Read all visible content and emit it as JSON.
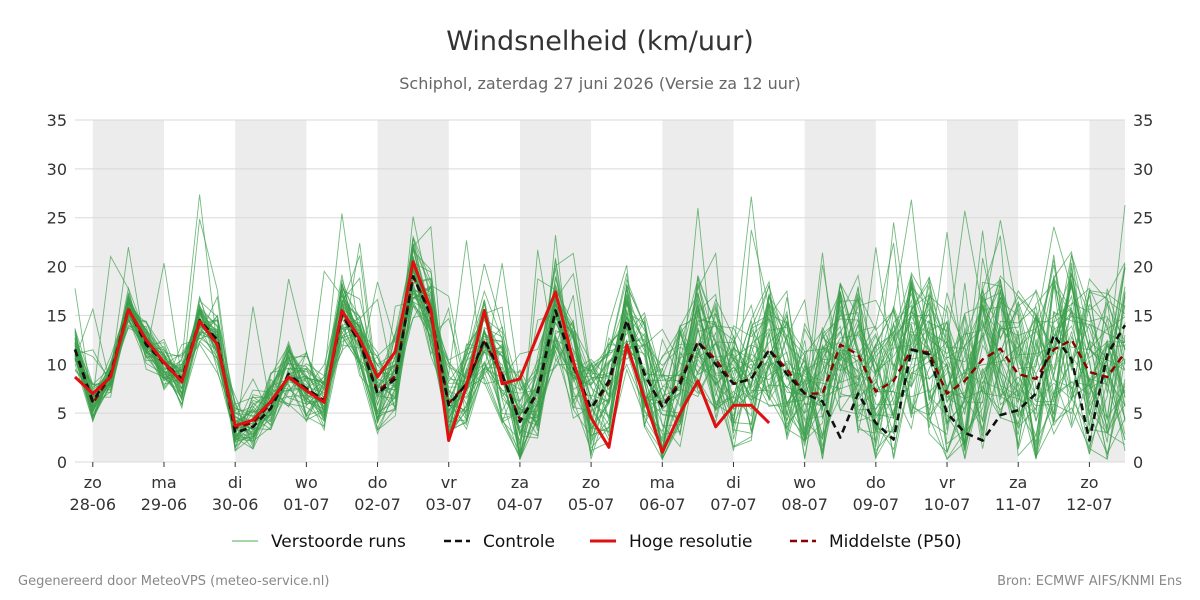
{
  "title": "Windsnelheid (km/uur)",
  "subtitle": "Schiphol, zaterdag 27 juni 2026 (Versie za 12 uur)",
  "footer_left": "Gegenereerd door MeteoVPS (meteo-service.nl)",
  "footer_right": "Bron: ECMWF AIFS/KNMI Ens",
  "legend": [
    {
      "label": "Verstoorde runs",
      "color": "#4caf50",
      "style": "thin"
    },
    {
      "label": "Controle",
      "color": "#111111",
      "style": "dashed"
    },
    {
      "label": "Hoge resolutie",
      "color": "#e01010",
      "style": "solid"
    },
    {
      "label": "Middelste (P50)",
      "color": "#8b0000",
      "style": "dashed"
    }
  ],
  "chart_data": {
    "type": "line",
    "title": "Windsnelheid (km/uur)",
    "subtitle": "Schiphol, zaterdag 27 juni 2026 (Versie za 12 uur)",
    "x_unit": "days since 28-06 00:00",
    "x_range": [
      -0.25,
      14.5
    ],
    "ylim": [
      0,
      35
    ],
    "yticks": [
      0,
      5,
      10,
      15,
      20,
      25,
      30,
      35
    ],
    "grid": true,
    "legend_position": "bottom",
    "x_ticks": [
      {
        "day": "zo",
        "date": "28-06"
      },
      {
        "day": "ma",
        "date": "29-06"
      },
      {
        "day": "di",
        "date": "30-06"
      },
      {
        "day": "wo",
        "date": "01-07"
      },
      {
        "day": "do",
        "date": "02-07"
      },
      {
        "day": "vr",
        "date": "03-07"
      },
      {
        "day": "za",
        "date": "04-07"
      },
      {
        "day": "zo",
        "date": "05-07"
      },
      {
        "day": "ma",
        "date": "06-07"
      },
      {
        "day": "di",
        "date": "07-07"
      },
      {
        "day": "wo",
        "date": "08-07"
      },
      {
        "day": "do",
        "date": "09-07"
      },
      {
        "day": "vr",
        "date": "10-07"
      },
      {
        "day": "za",
        "date": "11-07"
      },
      {
        "day": "zo",
        "date": "12-07"
      }
    ],
    "shaded_days": [
      0,
      2,
      4,
      6,
      8,
      10,
      12,
      14
    ],
    "series": [
      {
        "name": "Hoge resolutie",
        "color": "#e01010",
        "x": [
          -0.25,
          0,
          0.25,
          0.5,
          0.75,
          1,
          1.25,
          1.5,
          1.75,
          2,
          2.25,
          2.5,
          2.75,
          3,
          3.25,
          3.5,
          3.75,
          4,
          4.25,
          4.5,
          4.75,
          5,
          5.25,
          5.5,
          5.75,
          6,
          6.25,
          6.5,
          6.75,
          7,
          7.25,
          7.5,
          7.75,
          8,
          8.25,
          8.5,
          8.75,
          9,
          9.25,
          9.5
        ],
        "values": [
          8.7,
          7.0,
          8.7,
          15.6,
          12.5,
          10.2,
          8.2,
          14.4,
          12.0,
          3.7,
          4.3,
          6.2,
          8.7,
          7.3,
          6.1,
          15.5,
          12.6,
          8.7,
          11.3,
          20.5,
          15.6,
          2.2,
          7.8,
          15.5,
          8.0,
          8.5,
          13.0,
          17.4,
          10.3,
          4.5,
          1.5,
          12.0,
          6.5,
          1.0,
          5.0,
          8.3,
          3.6,
          5.8,
          5.8,
          4.0
        ]
      },
      {
        "name": "Controle",
        "color": "#111111",
        "x": [
          -0.25,
          0,
          0.25,
          0.5,
          0.75,
          1,
          1.25,
          1.5,
          1.75,
          2,
          2.25,
          2.5,
          2.75,
          3,
          3.25,
          3.5,
          3.75,
          4,
          4.25,
          4.5,
          4.75,
          5,
          5.25,
          5.5,
          5.75,
          6,
          6.25,
          6.5,
          6.75,
          7,
          7.25,
          7.5,
          7.75,
          8,
          8.25,
          8.5,
          8.75,
          9,
          9.25,
          9.5,
          9.75,
          10,
          10.25,
          10.5,
          10.75,
          11,
          11.25,
          11.5,
          11.75,
          12,
          12.25,
          12.5,
          12.75,
          13,
          13.25,
          13.5,
          13.75,
          14,
          14.25,
          14.5
        ],
        "values": [
          11.5,
          6.2,
          9.0,
          15.7,
          12.0,
          10.2,
          8.5,
          14.5,
          12.5,
          3.0,
          3.6,
          5.5,
          9.0,
          7.5,
          6.3,
          15.0,
          12.3,
          7.0,
          8.5,
          19.0,
          15.0,
          5.8,
          8.0,
          12.5,
          9.0,
          4.1,
          7.2,
          15.5,
          9.8,
          5.5,
          8.3,
          14.5,
          9.0,
          5.6,
          8.0,
          12.3,
          10.0,
          8.0,
          8.5,
          11.5,
          9.0,
          7.0,
          6.2,
          2.5,
          7.0,
          4.0,
          2.3,
          11.5,
          11.0,
          5.0,
          3.0,
          2.2,
          4.8,
          5.3,
          7.0,
          13.0,
          10.5,
          2.2,
          11.0,
          14.0
        ]
      },
      {
        "name": "Middelste (P50)",
        "color": "#8b0000",
        "x": [
          -0.25,
          0,
          0.25,
          0.5,
          0.75,
          1,
          1.25,
          1.5,
          1.75,
          2,
          2.25,
          2.5,
          2.75,
          3,
          3.25,
          3.5,
          3.75,
          4,
          4.25,
          4.5,
          4.75,
          5,
          5.25,
          5.5,
          5.75,
          6,
          6.25,
          6.5,
          6.75,
          7,
          7.25,
          7.5,
          7.75,
          8,
          8.25,
          8.5,
          8.75,
          9,
          9.25,
          9.5,
          9.75,
          10,
          10.25,
          10.5,
          10.75,
          11,
          11.25,
          11.5,
          11.75,
          12,
          12.25,
          12.5,
          12.75,
          13,
          13.25,
          13.5,
          13.75,
          14,
          14.25,
          14.5
        ],
        "values": [
          11.5,
          6.0,
          8.8,
          15.6,
          12.3,
          10.0,
          8.3,
          14.3,
          12.4,
          3.5,
          4.0,
          6.0,
          8.8,
          7.5,
          6.3,
          15.0,
          12.3,
          7.2,
          8.8,
          19.0,
          15.2,
          6.0,
          8.0,
          12.3,
          9.0,
          4.3,
          7.0,
          15.5,
          10.0,
          5.5,
          8.0,
          14.5,
          9.0,
          5.7,
          8.3,
          12.3,
          10.5,
          8.0,
          8.5,
          11.5,
          9.5,
          7.0,
          7.0,
          12.0,
          11.0,
          7.2,
          8.3,
          11.5,
          11.2,
          7.0,
          8.3,
          10.5,
          11.6,
          9.0,
          8.5,
          11.5,
          12.5,
          9.2,
          8.7,
          11.2
        ]
      }
    ],
    "ensemble": {
      "name": "Verstoorde runs",
      "color": "#3a9e4a",
      "member_count": 50,
      "x_start": -0.25,
      "x_step": 0.25,
      "median": [
        11.5,
        6.0,
        8.8,
        15.6,
        12.3,
        10.0,
        8.3,
        14.3,
        12.4,
        3.5,
        4.0,
        6.0,
        8.8,
        7.5,
        6.3,
        15.0,
        12.3,
        7.2,
        8.8,
        19.0,
        15.2,
        6.0,
        8.0,
        12.3,
        9.0,
        4.3,
        7.0,
        15.5,
        10.0,
        5.5,
        8.0,
        14.5,
        9.0,
        5.7,
        8.3,
        12.3,
        10.5,
        8.0,
        8.5,
        11.5,
        9.5,
        7.0,
        7.0,
        12.0,
        11.0,
        7.2,
        8.3,
        11.5,
        11.2,
        7.0,
        8.3,
        10.5,
        11.6,
        9.0,
        8.5,
        11.5,
        12.5,
        9.2,
        8.7,
        11.2
      ]
    }
  }
}
